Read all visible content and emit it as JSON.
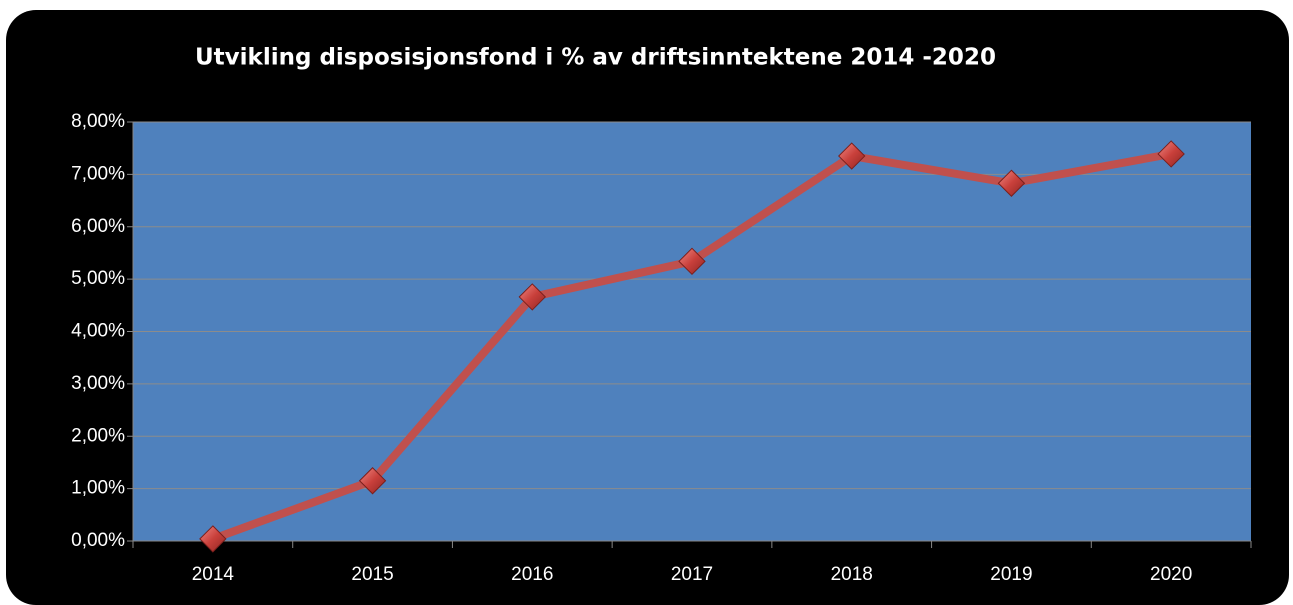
{
  "chart_data": {
    "type": "line",
    "title": "Utvikling disposisjonsfond i % av driftsinntektene 2014 -2020",
    "categories": [
      "2014",
      "2015",
      "2016",
      "2017",
      "2018",
      "2019",
      "2020"
    ],
    "values": [
      0.04,
      1.15,
      4.66,
      5.34,
      7.35,
      6.83,
      7.39
    ],
    "color": "#c0504d",
    "plot_background": "#4f81bd",
    "ylim": [
      0,
      8
    ],
    "yticks": [
      {
        "value": 0,
        "label": "0,00%"
      },
      {
        "value": 1,
        "label": "1,00%"
      },
      {
        "value": 2,
        "label": "2,00%"
      },
      {
        "value": 3,
        "label": "3,00%"
      },
      {
        "value": 4,
        "label": "4,00%"
      },
      {
        "value": 5,
        "label": "5,00%"
      },
      {
        "value": 6,
        "label": "6,00%"
      },
      {
        "value": 7,
        "label": "7,00%"
      },
      {
        "value": 8,
        "label": "8,00%"
      }
    ],
    "grid": true
  }
}
